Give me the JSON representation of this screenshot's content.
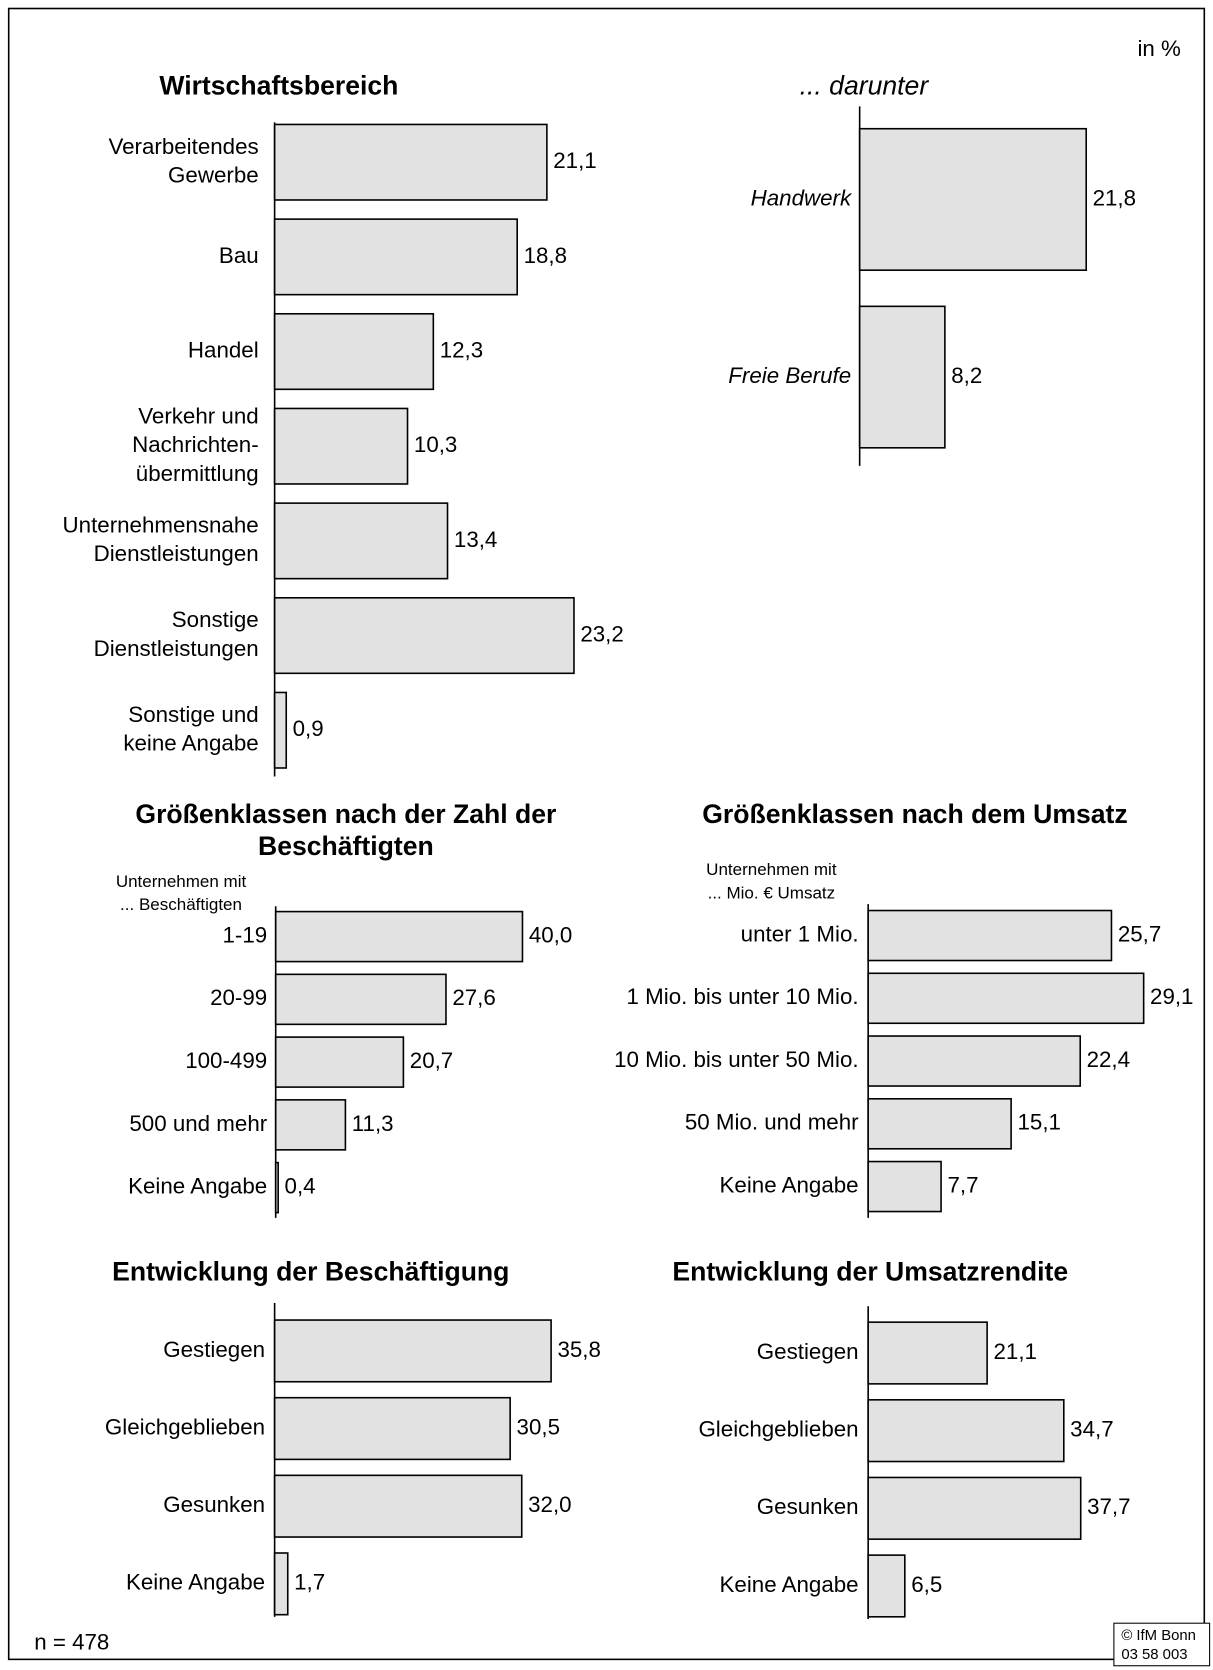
{
  "unit": "in %",
  "n": "n = 478",
  "copyright": "© IfM Bonn",
  "code": "03 58 003",
  "chart_data": [
    {
      "type": "bar",
      "orientation": "horizontal",
      "title": "Wirtschaftsbereich",
      "color": "#e2e2e2",
      "categories": [
        "Verarbeitendes\nGewerbe",
        "Bau",
        "Handel",
        "Verkehr und\nNachrichten-\nübermittlung",
        "Unternehmensnahe\nDienstleistungen",
        "Sonstige\nDienstleistungen",
        "Sonstige und\nkeine Angabe"
      ],
      "values": [
        21.1,
        18.8,
        12.3,
        10.3,
        13.4,
        23.2,
        0.9
      ],
      "value_labels": [
        "21,1",
        "18,8",
        "12,3",
        "10,3",
        "13,4",
        "23,2",
        "0,9"
      ]
    },
    {
      "type": "bar",
      "orientation": "horizontal",
      "title": "... darunter",
      "italic": true,
      "color": "#e2e2e2",
      "categories": [
        "Handwerk",
        "Freie Berufe"
      ],
      "values": [
        21.8,
        8.2
      ],
      "value_labels": [
        "21,8",
        "8,2"
      ]
    },
    {
      "type": "bar",
      "orientation": "horizontal",
      "title": "Größenklassen nach der Zahl der\nBeschäftigten",
      "subtitle": "Unternehmen mit\n... Beschäftigten",
      "color": "#e2e2e2",
      "categories": [
        "1-19",
        "20-99",
        "100-499",
        "500 und mehr",
        "Keine Angabe"
      ],
      "values": [
        40.0,
        27.6,
        20.7,
        11.3,
        0.4
      ],
      "value_labels": [
        "40,0",
        "27,6",
        "20,7",
        "11,3",
        "0,4"
      ]
    },
    {
      "type": "bar",
      "orientation": "horizontal",
      "title": "Größenklassen nach dem Umsatz",
      "subtitle": "Unternehmen mit\n... Mio. € Umsatz",
      "color": "#e2e2e2",
      "categories": [
        "unter 1 Mio.",
        "1 Mio. bis unter 10 Mio.",
        "10 Mio. bis unter 50 Mio.",
        "50 Mio. und mehr",
        "Keine Angabe"
      ],
      "values": [
        25.7,
        29.1,
        22.4,
        15.1,
        7.7
      ],
      "value_labels": [
        "25,7",
        "29,1",
        "22,4",
        "15,1",
        "7,7"
      ]
    },
    {
      "type": "bar",
      "orientation": "horizontal",
      "title": "Entwicklung der Beschäftigung",
      "color": "#e2e2e2",
      "categories": [
        "Gestiegen",
        "Gleichgeblieben",
        "Gesunken",
        "Keine Angabe"
      ],
      "values": [
        35.8,
        30.5,
        32.0,
        1.7
      ],
      "value_labels": [
        "35,8",
        "30,5",
        "32,0",
        "1,7"
      ]
    },
    {
      "type": "bar",
      "orientation": "horizontal",
      "title": "Entwicklung der Umsatzrendite",
      "color": "#e2e2e2",
      "categories": [
        "Gestiegen",
        "Gleichgeblieben",
        "Gesunken",
        "Keine Angabe"
      ],
      "values": [
        21.1,
        34.7,
        37.7,
        6.5
      ],
      "value_labels": [
        "21,1",
        "34,7",
        "37,7",
        "6,5"
      ]
    }
  ]
}
